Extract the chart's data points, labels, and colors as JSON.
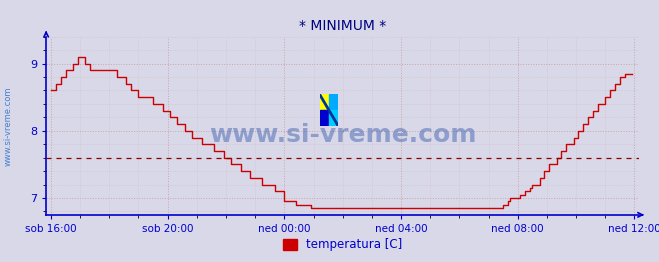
{
  "title": "* MINIMUM *",
  "title_color": "#000080",
  "title_fontsize": 10,
  "background_color": "#d8d8e8",
  "plot_bg_color": "#d8d8e8",
  "line_color": "#cc0000",
  "line_width": 1.0,
  "ylim": [
    6.75,
    9.4
  ],
  "yticks": [
    7,
    8,
    9
  ],
  "tick_color": "#0000cc",
  "axis_color": "#0000cc",
  "grid_color_major": "#c8a0a0",
  "grid_color_minor": "#d4b4b4",
  "watermark_text": "www.si-vreme.com",
  "watermark_color": "#3355aa",
  "watermark_alpha": 0.45,
  "watermark_fontsize": 18,
  "sidewatermark_text": "www.si-vreme.com",
  "sidewatermark_color": "#3377cc",
  "sidewatermark_alpha": 0.9,
  "legend_label": "temperatura [C]",
  "legend_color": "#cc0000",
  "avg_line_color": "#880000",
  "avg_value": 7.6,
  "x_tick_labels": [
    "sob 16:00",
    "sob 20:00",
    "ned 00:00",
    "ned 04:00",
    "ned 08:00",
    "ned 12:00"
  ],
  "x_tick_positions": [
    0,
    48,
    96,
    144,
    192,
    240
  ],
  "total_points": 288,
  "temperature_data": [
    8.6,
    8.6,
    8.7,
    8.7,
    8.8,
    8.8,
    8.9,
    8.9,
    8.9,
    9.0,
    9.0,
    9.1,
    9.1,
    9.1,
    9.0,
    9.0,
    8.9,
    8.9,
    8.9,
    8.9,
    8.9,
    8.9,
    8.9,
    8.9,
    8.9,
    8.9,
    8.9,
    8.8,
    8.8,
    8.8,
    8.8,
    8.7,
    8.7,
    8.6,
    8.6,
    8.6,
    8.5,
    8.5,
    8.5,
    8.5,
    8.5,
    8.5,
    8.4,
    8.4,
    8.4,
    8.4,
    8.3,
    8.3,
    8.3,
    8.2,
    8.2,
    8.2,
    8.1,
    8.1,
    8.1,
    8.0,
    8.0,
    8.0,
    7.9,
    7.9,
    7.9,
    7.9,
    7.8,
    7.8,
    7.8,
    7.8,
    7.8,
    7.7,
    7.7,
    7.7,
    7.7,
    7.6,
    7.6,
    7.6,
    7.5,
    7.5,
    7.5,
    7.5,
    7.4,
    7.4,
    7.4,
    7.4,
    7.3,
    7.3,
    7.3,
    7.3,
    7.3,
    7.2,
    7.2,
    7.2,
    7.2,
    7.2,
    7.1,
    7.1,
    7.1,
    7.1,
    6.95,
    6.95,
    6.95,
    6.95,
    6.95,
    6.9,
    6.9,
    6.9,
    6.9,
    6.9,
    6.9,
    6.85,
    6.85,
    6.85,
    6.85,
    6.85,
    6.85,
    6.85,
    6.85,
    6.85,
    6.85,
    6.85,
    6.85,
    6.85,
    6.85,
    6.85,
    6.85,
    6.85,
    6.85,
    6.85,
    6.85,
    6.85,
    6.85,
    6.85,
    6.85,
    6.85,
    6.85,
    6.85,
    6.85,
    6.85,
    6.85,
    6.85,
    6.85,
    6.85,
    6.85,
    6.85,
    6.85,
    6.85,
    6.85,
    6.85,
    6.85,
    6.85,
    6.85,
    6.85,
    6.85,
    6.85,
    6.85,
    6.85,
    6.85,
    6.85,
    6.85,
    6.85,
    6.85,
    6.85,
    6.85,
    6.85,
    6.85,
    6.85,
    6.85,
    6.85,
    6.85,
    6.85,
    6.85,
    6.85,
    6.85,
    6.85,
    6.85,
    6.85,
    6.85,
    6.85,
    6.85,
    6.85,
    6.85,
    6.85,
    6.85,
    6.85,
    6.85,
    6.85,
    6.85,
    6.85,
    6.9,
    6.9,
    6.95,
    7.0,
    7.0,
    7.0,
    7.0,
    7.05,
    7.05,
    7.1,
    7.1,
    7.15,
    7.2,
    7.2,
    7.2,
    7.3,
    7.3,
    7.4,
    7.4,
    7.5,
    7.5,
    7.5,
    7.6,
    7.6,
    7.7,
    7.7,
    7.8,
    7.8,
    7.8,
    7.9,
    7.9,
    8.0,
    8.0,
    8.1,
    8.1,
    8.2,
    8.2,
    8.3,
    8.3,
    8.4,
    8.4,
    8.4,
    8.5,
    8.5,
    8.6,
    8.6,
    8.7,
    8.7,
    8.8,
    8.8,
    8.85,
    8.85,
    8.85,
    8.85
  ]
}
